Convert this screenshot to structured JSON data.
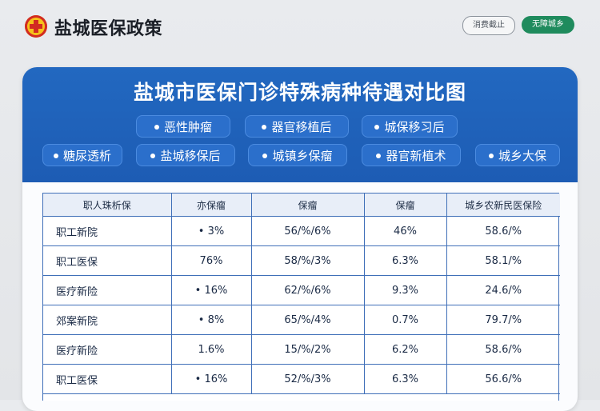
{
  "header": {
    "brand": "盐城医保政策",
    "buttons": [
      {
        "label": "消费截止"
      },
      {
        "label": "无障城乡"
      }
    ]
  },
  "card": {
    "title": "盐城市医保门诊特殊病种待遇对比图",
    "tags_row1": [
      "恶性肿瘤",
      "器官移植后",
      "城保移习后"
    ],
    "tags_row2": [
      "糖尿透析",
      "盐城移保后",
      "城镇乡保瘤",
      "器官新植术",
      "城乡大保"
    ]
  },
  "table": {
    "headers": [
      "职人珠析保",
      "亦保瘤",
      "保瘤",
      "保瘤",
      "城乡农新民医保险"
    ],
    "rows": [
      [
        "职工新院",
        "• 3%",
        "56/%/6%",
        "46%",
        "58.6/%"
      ],
      [
        "职工医保",
        "76%",
        "58/%/3%",
        "6.3%",
        "58.1/%"
      ],
      [
        "医疗新险",
        "• 16%",
        "62/%/6%",
        "9.3%",
        "24.6/%"
      ],
      [
        "郊案新院",
        "• 8%",
        "65/%/4%",
        "0.7%",
        "79.7/%"
      ],
      [
        "医疗新险",
        "1.6%",
        "15/%/2%",
        "6.2%",
        "58.6/%"
      ],
      [
        "职工医保",
        "• 16%",
        "52/%/3%",
        "6.3%",
        "56.6/%"
      ]
    ]
  },
  "colors": {
    "banner": "#1d5cb4",
    "accent_green": "#1f8b5d",
    "logo_red": "#d22b22",
    "logo_gold": "#f6c21a"
  },
  "icons": {
    "logo": "red-cross-emblem-icon"
  }
}
